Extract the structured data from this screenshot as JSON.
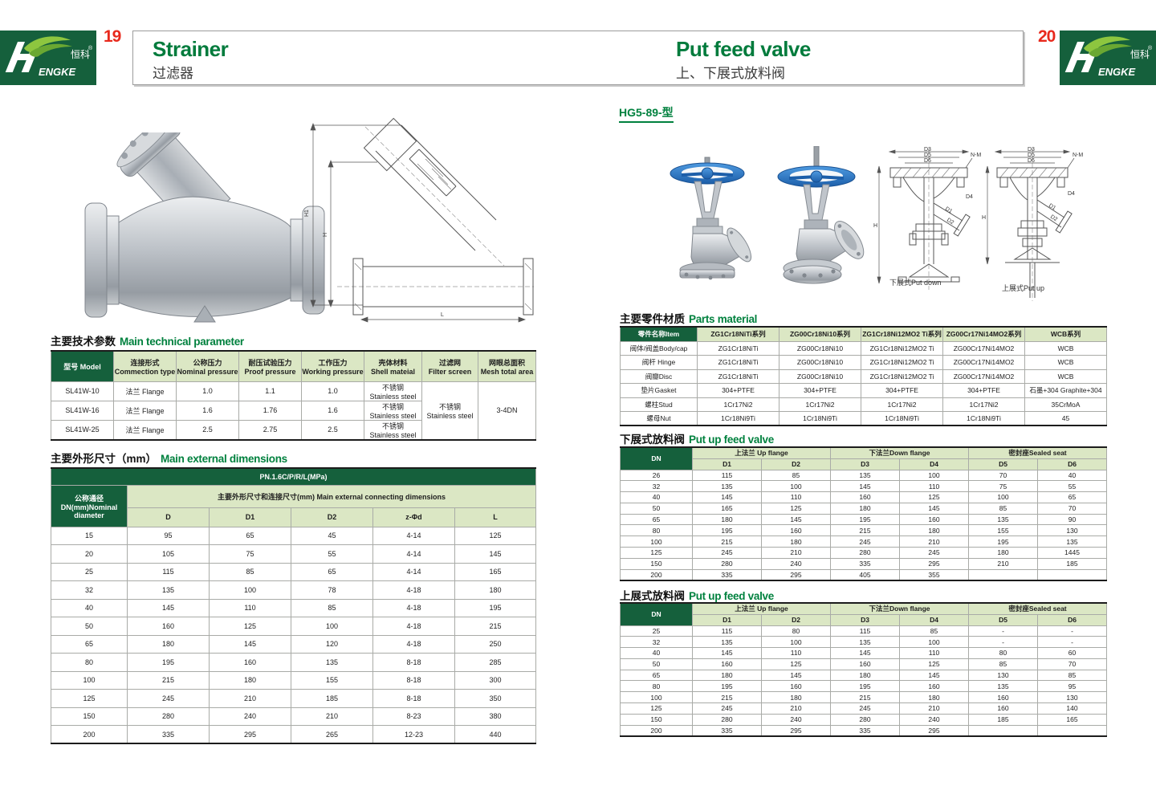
{
  "colors": {
    "brand_green": "#15603c",
    "light_green": "#dbe7c4",
    "title_green": "#007b3c",
    "page_red": "#e8291c"
  },
  "brand": {
    "logo_h": "H",
    "logo_rest": "ENGKE",
    "logo_cn": "恒科",
    "reg": "®"
  },
  "header": {
    "left_page_no": "19",
    "right_page_no": "20",
    "left": {
      "title": "Strainer",
      "subtitle": "过滤器"
    },
    "right": {
      "title": "Put feed valve",
      "subtitle": "上、下展式放料阀"
    }
  },
  "left_page": {
    "tech_title_cn": "主要技术参数",
    "tech_title_en": "Main technical parameter",
    "tech_table": {
      "headers": {
        "model": "型号 Model",
        "connection": "连接形式\nCommection type",
        "nominal": "公称压力\nNominal pressure",
        "proof": "耐压试验压力\nProof pressure",
        "working": "工作压力\nWorking pressure",
        "shell": "壳体材料\nShell mateial",
        "filter": "过滤网\nFilter screen",
        "mesh": "网眼总面积\nMesh total area"
      },
      "rows": [
        [
          "SL41W-10",
          "法兰 Flange",
          "1.0",
          "1.1",
          "1.0",
          "不锈钢\nStainless steel"
        ],
        [
          "SL41W-16",
          "法兰 Flange",
          "1.6",
          "1.76",
          "1.6",
          "不锈钢\nStainless steel"
        ],
        [
          "SL41W-25",
          "法兰 Flange",
          "2.5",
          "2.75",
          "2.5",
          "不锈钢\nStainless steel"
        ]
      ],
      "filter_merged": "不锈钢\nStainless steel",
      "mesh_merged": "3-4DN"
    },
    "dims_title_cn": "主要外形尺寸（mm）",
    "dims_title_en": "Main external dimensions",
    "dims_table": {
      "pn": "PN.1.6C/P/R/L(MPa)",
      "dn_header": "公称通径\nDN(mm)Nominal\ndiameter",
      "group_header": "主要外形尺寸和连接尺寸(mm) Main external connecting dimensions",
      "cols": [
        "D",
        "D1",
        "D2",
        "z-Φd",
        "L"
      ],
      "rows": [
        [
          "15",
          "95",
          "65",
          "45",
          "4-14",
          "125"
        ],
        [
          "20",
          "105",
          "75",
          "55",
          "4-14",
          "145"
        ],
        [
          "25",
          "115",
          "85",
          "65",
          "4-14",
          "165"
        ],
        [
          "32",
          "135",
          "100",
          "78",
          "4-18",
          "180"
        ],
        [
          "40",
          "145",
          "110",
          "85",
          "4-18",
          "195"
        ],
        [
          "50",
          "160",
          "125",
          "100",
          "4-18",
          "215"
        ],
        [
          "65",
          "180",
          "145",
          "120",
          "4-18",
          "250"
        ],
        [
          "80",
          "195",
          "160",
          "135",
          "8-18",
          "285"
        ],
        [
          "100",
          "215",
          "180",
          "155",
          "8-18",
          "300"
        ],
        [
          "125",
          "245",
          "210",
          "185",
          "8-18",
          "350"
        ],
        [
          "150",
          "280",
          "240",
          "210",
          "8-23",
          "380"
        ],
        [
          "200",
          "335",
          "295",
          "265",
          "12-23",
          "440"
        ]
      ]
    },
    "drawing": {
      "h1": "H1",
      "h": "H",
      "l": "L"
    }
  },
  "right_page": {
    "model": "HG5-89-型",
    "parts_title_cn": "主要零件材质",
    "parts_title_en": "Parts material",
    "parts_table": {
      "item_header": "零件名称Item",
      "series": [
        "ZG1Cr18NiTi系列",
        "ZG00Cr18Ni10系列",
        "ZG1Cr18Ni12MO2 Ti系列",
        "ZG00Cr17Ni14MO2系列",
        "WCB系列"
      ],
      "rows": [
        [
          "阀体/阀盖Body/cap",
          "ZG1Cr18NiTi",
          "ZG00Cr18Ni10",
          "ZG1Cr18Ni12MO2 Ti",
          "ZG00Cr17Ni14MO2",
          "WCB"
        ],
        [
          "阀杆 Hinge",
          "ZG1Cr18NiTi",
          "ZG00Cr18Ni10",
          "ZG1Cr18Ni12MO2 Ti",
          "ZG00Cr17Ni14MO2",
          "WCB"
        ],
        [
          "阀瓣Disc",
          "ZG1Cr18NiTi",
          "ZG00Cr18Ni10",
          "ZG1Cr18Ni12MO2 Ti",
          "ZG00Cr17Ni14MO2",
          "WCB"
        ],
        [
          "垫片Gasket",
          "304+PTFE",
          "304+PTFE",
          "304+PTFE",
          "304+PTFE",
          "石墨+304 Graphite+304"
        ],
        [
          "螺柱Stud",
          "1Cr17Ni2",
          "1Cr17Ni2",
          "1Cr17Ni2",
          "1Cr17Ni2",
          "35CrMoA"
        ],
        [
          "螺母Nut",
          "1Cr18Ni9Ti",
          "1Cr18Ni9Ti",
          "1Cr18Ni9Ti",
          "1Cr18Ni9Ti",
          "45"
        ]
      ]
    },
    "down_title_cn": "下展式放料阀",
    "down_title_en": "Put up feed valve",
    "up_title_cn": "上展式放料阀",
    "up_title_en": "Put up feed valve",
    "dims_headers": {
      "dn": "DN",
      "up_flange": "上法兰 Up flange",
      "down_flange": "下法兰Down flange",
      "sealed_seat": "密封座Sealed seat",
      "cols": [
        "D1",
        "D2",
        "D3",
        "D4",
        "D5",
        "D6"
      ]
    },
    "down_table_rows": [
      [
        "26",
        "115",
        "85",
        "135",
        "100",
        "70",
        "40"
      ],
      [
        "32",
        "135",
        "100",
        "145",
        "110",
        "75",
        "55"
      ],
      [
        "40",
        "145",
        "110",
        "160",
        "125",
        "100",
        "65"
      ],
      [
        "50",
        "165",
        "125",
        "180",
        "145",
        "85",
        "70"
      ],
      [
        "65",
        "180",
        "145",
        "195",
        "160",
        "135",
        "90"
      ],
      [
        "80",
        "195",
        "160",
        "215",
        "180",
        "155",
        "130"
      ],
      [
        "100",
        "215",
        "180",
        "245",
        "210",
        "195",
        "135"
      ],
      [
        "125",
        "245",
        "210",
        "280",
        "245",
        "180",
        "1445"
      ],
      [
        "150",
        "280",
        "240",
        "335",
        "295",
        "210",
        "185"
      ],
      [
        "200",
        "335",
        "295",
        "405",
        "355",
        "",
        ""
      ]
    ],
    "up_table_rows": [
      [
        "25",
        "115",
        "80",
        "115",
        "85",
        "-",
        "-"
      ],
      [
        "32",
        "135",
        "100",
        "135",
        "100",
        "-",
        "-"
      ],
      [
        "40",
        "145",
        "110",
        "145",
        "110",
        "80",
        "60"
      ],
      [
        "50",
        "160",
        "125",
        "160",
        "125",
        "85",
        "70"
      ],
      [
        "65",
        "180",
        "145",
        "180",
        "145",
        "130",
        "85"
      ],
      [
        "80",
        "195",
        "160",
        "195",
        "160",
        "135",
        "95"
      ],
      [
        "100",
        "215",
        "180",
        "215",
        "180",
        "160",
        "130"
      ],
      [
        "125",
        "245",
        "210",
        "245",
        "210",
        "160",
        "140"
      ],
      [
        "150",
        "280",
        "240",
        "280",
        "240",
        "185",
        "165"
      ],
      [
        "200",
        "335",
        "295",
        "335",
        "295",
        "",
        ""
      ]
    ],
    "drawings": {
      "down_caption": "下展式Put down",
      "up_caption": "上展式Put up",
      "labels": {
        "d3": "D3",
        "d5": "D5",
        "d6": "D6",
        "nm": "N-M",
        "d4": "D4",
        "h": "H",
        "d1": "D1",
        "d2": "D2"
      }
    }
  }
}
